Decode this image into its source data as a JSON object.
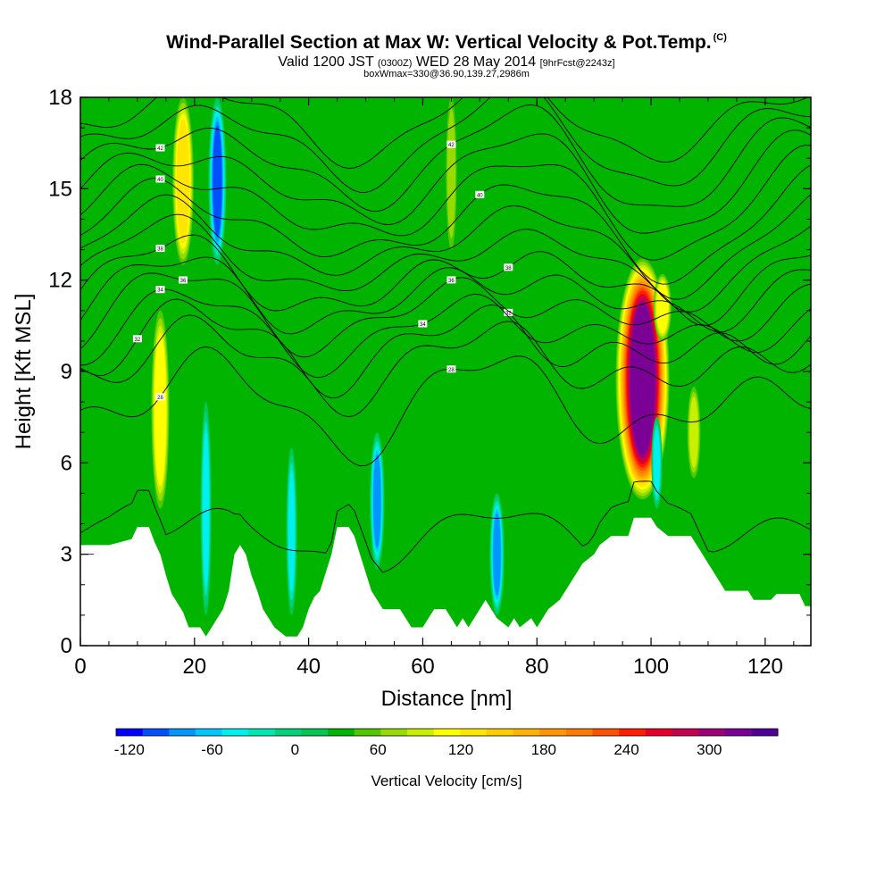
{
  "title": {
    "main": "Wind-Parallel Section at Max W: Vertical Velocity & Pot.Temp.",
    "copyright": "(C)",
    "valid_pre": "Valid 1200 JST",
    "valid_small": "(0300Z)",
    "valid_mid": "WED 28 May 2014",
    "valid_small2": "[9hrFcst@2243z]",
    "box": "boxWmax=330@36.90,139.27,2986m"
  },
  "chart_data": {
    "type": "heatmap",
    "xlabel": "Distance [nm]",
    "ylabel": "Height [Kft MSL]",
    "xlim": [
      0,
      128
    ],
    "ylim": [
      0,
      18
    ],
    "xticks": [
      0,
      20,
      40,
      60,
      80,
      100,
      120
    ],
    "yticks": [
      0,
      3,
      6,
      9,
      12,
      15,
      18
    ],
    "background_w": 20,
    "colorbar": {
      "label": "Vertical Velocity [cm/s]",
      "tick_values": [
        -120,
        -60,
        0,
        60,
        120,
        180,
        240,
        300
      ],
      "levels": [
        -120,
        -100,
        -80,
        -60,
        -40,
        -20,
        0,
        20,
        40,
        60,
        80,
        100,
        120,
        140,
        160,
        180,
        200,
        220,
        240,
        260,
        280,
        300,
        320,
        340
      ],
      "colors": [
        "#0000ff",
        "#0050ff",
        "#0096ff",
        "#00c8ff",
        "#00f0f0",
        "#00e6b4",
        "#00d278",
        "#00c850",
        "#00b400",
        "#50c800",
        "#96dc00",
        "#c8f000",
        "#ffff00",
        "#ffe600",
        "#ffcc00",
        "#ffb400",
        "#ff9600",
        "#ff7800",
        "#ff5000",
        "#ff1e00",
        "#e60028",
        "#c80050",
        "#a00078",
        "#7a0096",
        "#500096"
      ]
    },
    "vertical_velocity_features": [
      {
        "x": 14,
        "y_bottom": 4.5,
        "y_top": 11.0,
        "w": 110
      },
      {
        "x": 18,
        "y_bottom": 12.5,
        "y_top": 18.0,
        "w": 130
      },
      {
        "x": 24,
        "y_bottom": 12.5,
        "y_top": 18.0,
        "w": -110
      },
      {
        "x": 22,
        "y_bottom": 1.0,
        "y_top": 8.0,
        "w": -60
      },
      {
        "x": 37,
        "y_bottom": 1.0,
        "y_top": 6.5,
        "w": -50
      },
      {
        "x": 52,
        "y_bottom": 2.5,
        "y_top": 7.0,
        "w": -90
      },
      {
        "x": 65,
        "y_bottom": 13.0,
        "y_top": 18.0,
        "w": 60
      },
      {
        "x": 73,
        "y_bottom": 1.0,
        "y_top": 5.0,
        "w": -90
      },
      {
        "x": 98.5,
        "y_bottom": 4.8,
        "y_top": 12.7,
        "w": 330
      },
      {
        "x": 101,
        "y_bottom": 4.5,
        "y_top": 7.5,
        "w": -60
      },
      {
        "x": 102,
        "y_bottom": 10.0,
        "y_top": 12.2,
        "w": 110
      },
      {
        "x": 107.5,
        "y_bottom": 5.5,
        "y_top": 8.5,
        "w": 80
      }
    ],
    "terrain_height": [
      [
        0,
        3.3
      ],
      [
        5,
        3.3
      ],
      [
        9,
        3.5
      ],
      [
        10,
        3.9
      ],
      [
        12,
        3.9
      ],
      [
        13,
        3.4
      ],
      [
        14,
        3.0
      ],
      [
        15,
        2.3
      ],
      [
        16,
        1.7
      ],
      [
        18,
        1.1
      ],
      [
        19,
        0.6
      ],
      [
        21,
        0.6
      ],
      [
        22,
        0.3
      ],
      [
        23,
        0.6
      ],
      [
        25,
        1.2
      ],
      [
        26,
        1.8
      ],
      [
        27,
        3.0
      ],
      [
        28,
        3.3
      ],
      [
        29,
        3.0
      ],
      [
        30,
        2.3
      ],
      [
        31,
        1.8
      ],
      [
        32,
        1.2
      ],
      [
        34,
        0.6
      ],
      [
        36,
        0.3
      ],
      [
        38,
        0.3
      ],
      [
        39,
        0.6
      ],
      [
        40,
        1.2
      ],
      [
        41,
        1.6
      ],
      [
        42,
        1.8
      ],
      [
        43,
        2.4
      ],
      [
        44,
        3.0
      ],
      [
        45,
        3.9
      ],
      [
        47,
        3.9
      ],
      [
        48,
        3.6
      ],
      [
        49,
        3.0
      ],
      [
        50,
        2.4
      ],
      [
        51,
        1.8
      ],
      [
        52,
        1.5
      ],
      [
        53,
        1.2
      ],
      [
        56,
        1.2
      ],
      [
        57,
        0.9
      ],
      [
        58,
        0.6
      ],
      [
        60,
        0.6
      ],
      [
        61,
        0.9
      ],
      [
        62,
        1.2
      ],
      [
        64,
        1.2
      ],
      [
        65,
        0.9
      ],
      [
        66,
        0.6
      ],
      [
        67,
        0.9
      ],
      [
        68,
        0.6
      ],
      [
        69,
        0.9
      ],
      [
        70,
        1.2
      ],
      [
        71,
        1.5
      ],
      [
        72,
        1.2
      ],
      [
        73,
        0.9
      ],
      [
        75,
        0.6
      ],
      [
        76,
        0.9
      ],
      [
        77,
        0.6
      ],
      [
        79,
        0.9
      ],
      [
        80,
        0.6
      ],
      [
        82,
        1.2
      ],
      [
        84,
        1.5
      ],
      [
        86,
        2.1
      ],
      [
        88,
        2.7
      ],
      [
        90,
        3.0
      ],
      [
        91,
        3.3
      ],
      [
        93,
        3.6
      ],
      [
        96,
        3.6
      ],
      [
        97,
        4.2
      ],
      [
        100,
        4.2
      ],
      [
        101,
        3.9
      ],
      [
        103,
        3.6
      ],
      [
        107,
        3.6
      ],
      [
        108,
        3.3
      ],
      [
        110,
        2.7
      ],
      [
        111,
        2.4
      ],
      [
        112,
        2.1
      ],
      [
        113,
        1.8
      ],
      [
        117,
        1.8
      ],
      [
        118,
        1.5
      ],
      [
        121,
        1.5
      ],
      [
        122,
        1.7
      ],
      [
        126,
        1.7
      ],
      [
        127,
        1.3
      ],
      [
        128,
        1.3
      ]
    ],
    "theta_contours": [
      {
        "base": 3.5,
        "amp": [
          0.7,
          0.3,
          0.3
        ],
        "label": ""
      },
      {
        "base": 8.0,
        "amp": [
          1.0,
          0.7,
          0.5
        ],
        "label": "28"
      },
      {
        "base": 9.3,
        "amp": [
          0.8,
          0.5,
          0.5
        ],
        "label": ""
      },
      {
        "base": 9.9,
        "amp": [
          0.7,
          0.6,
          0.5
        ],
        "label": "32"
      },
      {
        "base": 10.4,
        "amp": [
          0.7,
          0.6,
          0.4
        ],
        "label": "34"
      },
      {
        "base": 11.0,
        "amp": [
          0.8,
          0.6,
          0.4
        ],
        "label": "36"
      },
      {
        "base": 11.5,
        "amp": [
          0.9,
          0.5,
          0.4
        ],
        "label": ""
      },
      {
        "base": 12.0,
        "amp": [
          1.0,
          0.5,
          0.4
        ],
        "label": "38"
      },
      {
        "base": 12.6,
        "amp": [
          1.1,
          0.5,
          0.3
        ],
        "label": ""
      },
      {
        "base": 13.2,
        "amp": [
          1.2,
          0.5,
          0.3
        ],
        "label": ""
      },
      {
        "base": 13.8,
        "amp": [
          1.3,
          0.5,
          0.3
        ],
        "label": "40"
      },
      {
        "base": 14.5,
        "amp": [
          1.3,
          0.5,
          0.3
        ],
        "label": ""
      },
      {
        "base": 15.2,
        "amp": [
          1.3,
          0.5,
          0.3
        ],
        "label": ""
      },
      {
        "base": 15.9,
        "amp": [
          1.3,
          0.5,
          0.3
        ],
        "label": "42"
      },
      {
        "base": 16.6,
        "amp": [
          1.2,
          0.5,
          0.3
        ],
        "label": ""
      },
      {
        "base": 17.3,
        "amp": [
          1.1,
          0.4,
          0.3
        ],
        "label": ""
      }
    ]
  }
}
